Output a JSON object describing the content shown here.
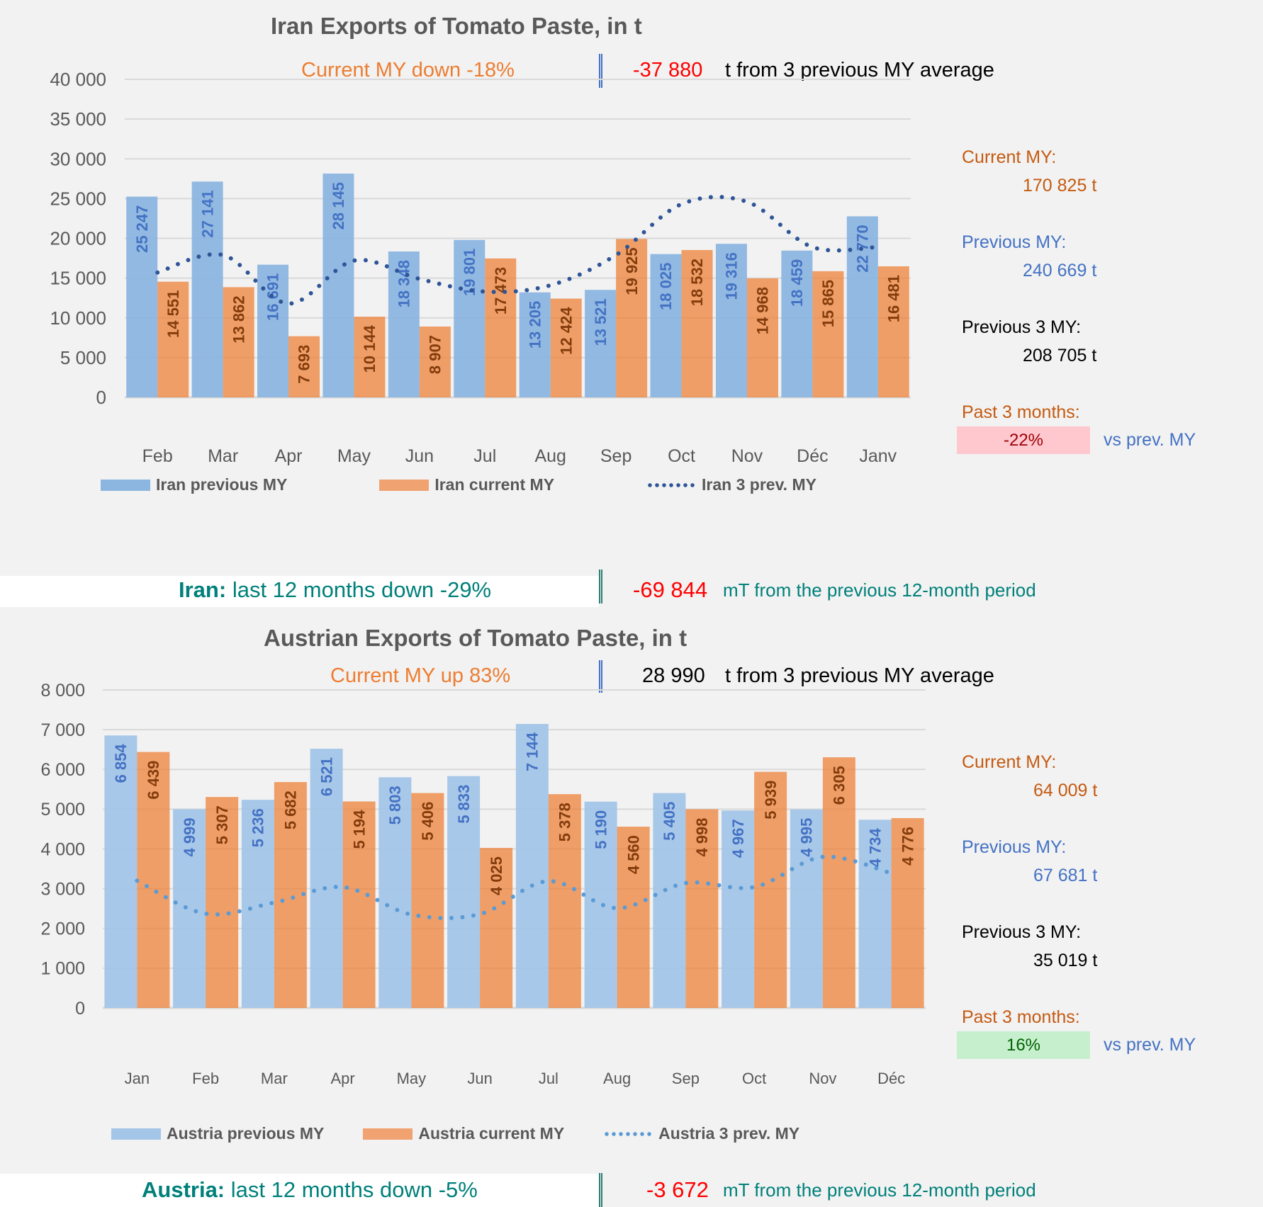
{
  "iran": {
    "title": "Iran Exports of Tomato Paste, in t",
    "subtitle_left": "Current MY down  -18%",
    "subtitle_value": "-37 880",
    "subtitle_right": "t from 3 previous MY average",
    "panel": {
      "current_label": "Current MY:",
      "current_value": "170 825  t",
      "previous_label": "Previous MY:",
      "previous_value": "240 669  t",
      "prev3_label": "Previous 3 MY:",
      "prev3_value": "208 705  t",
      "past3_label": "Past 3 months:",
      "past3_value": "-22%",
      "past3_suffix": "vs prev. MY",
      "badge_color": "#ffc7ce",
      "badge_text_color": "#9c0006"
    },
    "banner": {
      "country": "Iran:",
      "text": "last 12 months down  -29%",
      "value": "-69 844",
      "suffix": "mT from the previous 12-month period"
    }
  },
  "austria": {
    "title": "Austrian Exports of Tomato Paste, in t",
    "subtitle_left": "Current MY up  83%",
    "subtitle_value": "28 990",
    "subtitle_right": "t from 3 previous MY average",
    "panel": {
      "current_label": "Current MY:",
      "current_value": "64 009  t",
      "previous_label": "Previous MY:",
      "previous_value": "67 681  t",
      "prev3_label": "Previous 3 MY:",
      "prev3_value": "35 019  t",
      "past3_label": "Past 3 months:",
      "past3_value": "16%",
      "past3_suffix": "vs prev. MY",
      "badge_color": "#c6efce",
      "badge_text_color": "#006100"
    },
    "banner": {
      "country": "Austria:",
      "text": "last 12 months down  -5%",
      "value": "-3 672",
      "suffix": "mT from the previous 12-month period"
    }
  },
  "chart_data": [
    {
      "type": "bar",
      "title": "Iran Exports of Tomato Paste, in t",
      "xlabel": "",
      "ylabel": "",
      "ylim": [
        0,
        40000
      ],
      "yticks": [
        0,
        5000,
        10000,
        15000,
        20000,
        25000,
        30000,
        35000,
        40000
      ],
      "ytick_labels": [
        "0",
        "5 000",
        "10 000",
        "15 000",
        "20 000",
        "25 000",
        "30 000",
        "35 000",
        "40 000"
      ],
      "grid": true,
      "legend_position": "bottom",
      "categories": [
        "Feb",
        "Mar",
        "Apr",
        "May",
        "Jun",
        "Jul",
        "Aug",
        "Sep",
        "Oct",
        "Nov",
        "Déc",
        "Janv"
      ],
      "series": [
        {
          "name": "Iran previous MY",
          "kind": "bar",
          "color": "#5b9bd5",
          "values": [
            25247,
            27141,
            16691,
            28145,
            18348,
            19801,
            13205,
            13521,
            18025,
            19316,
            18459,
            22770
          ],
          "labels": [
            "25 247",
            "27 141",
            "16 691",
            "28 145",
            "18 348",
            "19 801",
            "13 205",
            "13 521",
            "18 025",
            "19 316",
            "18 459",
            "22 770"
          ],
          "label_color": "#4472c4"
        },
        {
          "name": "Iran current MY",
          "kind": "bar",
          "color": "#ed7d31",
          "values": [
            14551,
            13862,
            7693,
            10144,
            8907,
            17473,
            12424,
            19925,
            18532,
            14968,
            15865,
            16481
          ],
          "labels": [
            "14 551",
            "13 862",
            "7 693",
            "10 144",
            "8 907",
            "17 473",
            "12 424",
            "19 925",
            "18 532",
            "14 968",
            "15 865",
            "16 481"
          ],
          "label_color": "#843c0c"
        },
        {
          "name": "Iran 3 prev. MY",
          "kind": "line",
          "style": "dotted",
          "color": "#2f5597",
          "values": [
            15700,
            17900,
            11800,
            17200,
            14900,
            13300,
            14100,
            17900,
            24300,
            24600,
            18900,
            18900
          ]
        }
      ]
    },
    {
      "type": "bar",
      "title": "Austrian Exports of Tomato Paste, in t",
      "xlabel": "",
      "ylabel": "",
      "ylim": [
        0,
        8000
      ],
      "yticks": [
        0,
        1000,
        2000,
        3000,
        4000,
        5000,
        6000,
        7000,
        8000
      ],
      "ytick_labels": [
        "0",
        "1 000",
        "2 000",
        "3 000",
        "4 000",
        "5 000",
        "6 000",
        "7 000",
        "8 000"
      ],
      "grid": true,
      "legend_position": "bottom",
      "categories": [
        "Jan",
        "Feb",
        "Mar",
        "Apr",
        "May",
        "Jun",
        "Jul",
        "Aug",
        "Sep",
        "Oct",
        "Nov",
        "Déc"
      ],
      "series": [
        {
          "name": "Austria previous MY",
          "kind": "bar",
          "color": "#9dc3e6",
          "values": [
            6854,
            4999,
            5236,
            6521,
            5803,
            5833,
            7144,
            5190,
            5405,
            4967,
            4995,
            4734
          ],
          "labels": [
            "6 854",
            "4 999",
            "5 236",
            "6 521",
            "5 803",
            "5 833",
            "7 144",
            "5 190",
            "5 405",
            "4 967",
            "4 995",
            "4 734"
          ],
          "label_color": "#4472c4"
        },
        {
          "name": "Austria current MY",
          "kind": "bar",
          "color": "#ed7d31",
          "values": [
            6439,
            5307,
            5682,
            5194,
            5406,
            4025,
            5378,
            4560,
            4998,
            5939,
            6305,
            4776
          ],
          "labels": [
            "6 439",
            "5 307",
            "5 682",
            "5 194",
            "5 406",
            "4 025",
            "5 378",
            "4 560",
            "4 998",
            "5 939",
            "6 305",
            "4 776"
          ],
          "label_color": "#843c0c"
        },
        {
          "name": "Austria 3 prev. MY",
          "kind": "line",
          "style": "dotted",
          "color": "#5b9bd5",
          "values": [
            3200,
            2370,
            2650,
            3040,
            2350,
            2360,
            3190,
            2510,
            3140,
            3040,
            3800,
            3390
          ]
        }
      ]
    }
  ]
}
